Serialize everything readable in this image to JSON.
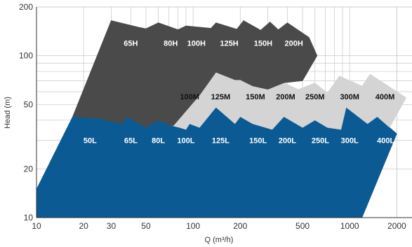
{
  "chart_data": {
    "type": "area",
    "xlabel": "Q (m³/h)",
    "ylabel": "Head (m)",
    "x_scale": "log",
    "y_scale": "log",
    "xlim": [
      10,
      2500
    ],
    "ylim": [
      10,
      200
    ],
    "x_ticks": [
      10,
      20,
      30,
      50,
      100,
      200,
      500,
      1000,
      2000
    ],
    "y_ticks": [
      10,
      20,
      50,
      100,
      200
    ],
    "grid": true,
    "series": [
      {
        "name": "L",
        "color": "#0b5a93",
        "outline": [
          [
            10,
            15
          ],
          [
            17,
            42
          ],
          [
            25,
            41
          ],
          [
            35,
            38
          ],
          [
            38,
            42
          ],
          [
            50,
            36
          ],
          [
            60,
            40
          ],
          [
            72,
            37
          ],
          [
            90,
            35
          ],
          [
            95,
            38
          ],
          [
            110,
            36
          ],
          [
            140,
            48
          ],
          [
            185,
            38
          ],
          [
            200,
            42
          ],
          [
            240,
            38
          ],
          [
            320,
            35
          ],
          [
            380,
            42
          ],
          [
            500,
            36
          ],
          [
            600,
            40
          ],
          [
            720,
            36
          ],
          [
            880,
            35
          ],
          [
            950,
            48
          ],
          [
            1300,
            38
          ],
          [
            1500,
            42
          ],
          [
            2000,
            33
          ],
          [
            1200,
            10
          ],
          [
            10,
            10
          ]
        ],
        "labels": [
          {
            "text": "50L",
            "x": 22,
            "y": 30
          },
          {
            "text": "65L",
            "x": 40,
            "y": 30
          },
          {
            "text": "80L",
            "x": 60,
            "y": 30
          },
          {
            "text": "100L",
            "x": 90,
            "y": 30
          },
          {
            "text": "125L",
            "x": 150,
            "y": 30
          },
          {
            "text": "150L",
            "x": 260,
            "y": 30
          },
          {
            "text": "200L",
            "x": 400,
            "y": 30
          },
          {
            "text": "250L",
            "x": 650,
            "y": 30
          },
          {
            "text": "300L",
            "x": 1000,
            "y": 30
          },
          {
            "text": "400L",
            "x": 1700,
            "y": 30
          }
        ]
      },
      {
        "name": "M",
        "color": "#d4d4d4",
        "outline": [
          [
            75,
            37
          ],
          [
            110,
            57
          ],
          [
            140,
            79
          ],
          [
            185,
            71
          ],
          [
            200,
            71
          ],
          [
            240,
            65
          ],
          [
            300,
            62
          ],
          [
            380,
            68
          ],
          [
            470,
            62
          ],
          [
            600,
            68
          ],
          [
            720,
            59
          ],
          [
            860,
            75
          ],
          [
            1200,
            65
          ],
          [
            1350,
            77
          ],
          [
            2300,
            55
          ],
          [
            1800,
            36
          ],
          [
            1500,
            42
          ],
          [
            1300,
            38
          ],
          [
            950,
            48
          ],
          [
            880,
            35
          ],
          [
            720,
            36
          ],
          [
            600,
            40
          ],
          [
            500,
            36
          ],
          [
            380,
            42
          ],
          [
            320,
            35
          ],
          [
            240,
            38
          ],
          [
            200,
            42
          ],
          [
            185,
            38
          ],
          [
            140,
            48
          ],
          [
            110,
            36
          ],
          [
            95,
            38
          ],
          [
            90,
            35
          ],
          [
            75,
            37
          ]
        ],
        "labels": [
          {
            "text": "100M",
            "x": 95,
            "y": 56
          },
          {
            "text": "125M",
            "x": 150,
            "y": 56
          },
          {
            "text": "150M",
            "x": 250,
            "y": 56
          },
          {
            "text": "200M",
            "x": 390,
            "y": 56
          },
          {
            "text": "250M",
            "x": 600,
            "y": 56
          },
          {
            "text": "300M",
            "x": 1000,
            "y": 56
          },
          {
            "text": "400M",
            "x": 1680,
            "y": 56
          }
        ]
      },
      {
        "name": "H",
        "color": "#4a4a4a",
        "outline": [
          [
            17,
            42
          ],
          [
            30,
            165
          ],
          [
            45,
            150
          ],
          [
            50,
            147
          ],
          [
            60,
            160
          ],
          [
            80,
            145
          ],
          [
            90,
            153
          ],
          [
            130,
            148
          ],
          [
            140,
            160
          ],
          [
            190,
            146
          ],
          [
            210,
            165
          ],
          [
            270,
            144
          ],
          [
            310,
            162
          ],
          [
            350,
            145
          ],
          [
            400,
            160
          ],
          [
            550,
            130
          ],
          [
            620,
            100
          ],
          [
            500,
            70
          ],
          [
            380,
            68
          ],
          [
            300,
            62
          ],
          [
            240,
            65
          ],
          [
            200,
            71
          ],
          [
            185,
            71
          ],
          [
            140,
            79
          ],
          [
            110,
            57
          ],
          [
            75,
            37
          ],
          [
            72,
            37
          ],
          [
            60,
            40
          ],
          [
            50,
            36
          ],
          [
            38,
            42
          ],
          [
            35,
            38
          ],
          [
            25,
            41
          ],
          [
            17,
            42
          ]
        ],
        "labels": [
          {
            "text": "65H",
            "x": 40,
            "y": 120
          },
          {
            "text": "80H",
            "x": 72,
            "y": 120
          },
          {
            "text": "100H",
            "x": 105,
            "y": 120
          },
          {
            "text": "125H",
            "x": 170,
            "y": 120
          },
          {
            "text": "150H",
            "x": 280,
            "y": 120
          },
          {
            "text": "200H",
            "x": 440,
            "y": 120
          }
        ]
      }
    ]
  }
}
